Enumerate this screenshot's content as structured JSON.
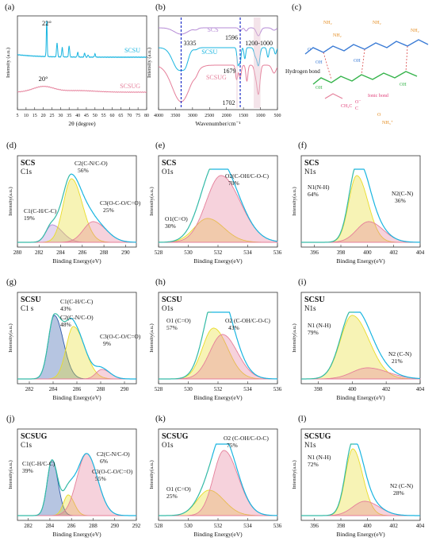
{
  "panel_labels": [
    "(a)",
    "(b)",
    "(c)",
    "(d)",
    "(e)",
    "(f)",
    "(g)",
    "(h)",
    "(i)",
    "(j)",
    "(k)",
    "(l)"
  ],
  "colors": {
    "cyan": "#19b5e0",
    "pink": "#e57f9a",
    "purple": "#b58bd6",
    "yellow": "#e9dc2a",
    "green": "#55c26a",
    "blue_fill": "#2e5aa8",
    "dash": "#1e2fc7"
  },
  "xrd": {
    "xlabel": "2θ (degree)",
    "ylabel": "Intensity (a.u.)",
    "ticks": [
      "5",
      "10",
      "15",
      "20",
      "25",
      "30",
      "35",
      "40",
      "45",
      "50",
      "55",
      "60",
      "65",
      "70",
      "75",
      "80"
    ],
    "series": [
      {
        "name": "SCSU",
        "peak_label": "22°"
      },
      {
        "name": "SCSUG",
        "peak_label": "20°"
      }
    ]
  },
  "ftir": {
    "xlabel": "Wavenumber/cm⁻¹",
    "ylabel": "Intensity (a.u.)",
    "ticks": [
      "4000",
      "3500",
      "3000",
      "2500",
      "2000",
      "1500",
      "1000",
      "500"
    ],
    "series": [
      {
        "name": "SCS"
      },
      {
        "name": "SCSU"
      },
      {
        "name": "SCSUG"
      }
    ],
    "annotations": [
      "3335",
      "1596",
      "1200-1000",
      "1679",
      "1702"
    ]
  },
  "structure": {
    "hbond_label": "Hydrogen bond",
    "ionic_label": "Ionic bond",
    "groups": [
      "NH₂",
      "NH₂",
      "NH₂",
      "NH₂",
      "OH",
      "OH",
      "OH",
      "OH",
      "O",
      "CH₂C",
      "O⁻",
      "C",
      "O",
      "NH₃⁺"
    ]
  },
  "xps_xlabel": "Binding Energy(eV)",
  "xps_ylabel": "Intensity(a.u.)",
  "chart_data": [
    {
      "type": "line",
      "panel": "(a)",
      "title": "",
      "xlabel": "2θ (degree)",
      "ylabel": "Intensity (a.u.)",
      "xlim": [
        5,
        80
      ],
      "series": [
        {
          "name": "SCSU",
          "peak_x": 22
        },
        {
          "name": "SCSUG",
          "peak_x": 20
        }
      ]
    },
    {
      "type": "line",
      "panel": "(b)",
      "title": "",
      "xlabel": "Wavenumber/cm⁻¹",
      "ylabel": "Intensity (a.u.)",
      "xlim": [
        4000,
        500
      ],
      "series": [
        {
          "name": "SCS"
        },
        {
          "name": "SCSU"
        },
        {
          "name": "SCSUG"
        }
      ],
      "markers": [
        3335,
        1596
      ]
    },
    {
      "type": "area",
      "panel": "(d)",
      "sample": "SCS",
      "core": "C1s",
      "xlim": [
        280,
        291
      ],
      "xticks": [
        280,
        282,
        284,
        286,
        288,
        290
      ],
      "components": [
        {
          "label": "C1(C-H/C-C)",
          "percent": "19%",
          "center": 283.2,
          "color": "#b58bd6"
        },
        {
          "label": "C2(C-N/C-O)",
          "percent": "56%",
          "center": 285.0,
          "color": "#e9dc2a"
        },
        {
          "label": "C3(O-C-O/C=O)",
          "percent": "25%",
          "center": 287.0,
          "color": "#e57f9a"
        }
      ]
    },
    {
      "type": "area",
      "panel": "(e)",
      "sample": "SCS",
      "core": "O1s",
      "xlim": [
        528,
        536
      ],
      "xticks": [
        528,
        530,
        532,
        534,
        536
      ],
      "components": [
        {
          "label": "O1(C=O)",
          "percent": "30%",
          "center": 531.3,
          "color": "#e9dc2a"
        },
        {
          "label": "O2(C-OH/C-O-C)",
          "percent": "70%",
          "center": 532.2,
          "color": "#e57f9a"
        }
      ]
    },
    {
      "type": "area",
      "panel": "(f)",
      "sample": "SCS",
      "core": "N1s",
      "xlim": [
        395,
        404
      ],
      "xticks": [
        396,
        398,
        400,
        402,
        404
      ],
      "components": [
        {
          "label": "N1(N-H)",
          "percent": "64%",
          "center": 399.2,
          "color": "#e9dc2a"
        },
        {
          "label": "N2(C-N)",
          "percent": "36%",
          "center": 400.1,
          "color": "#e57f9a"
        }
      ]
    },
    {
      "type": "area",
      "panel": "(g)",
      "sample": "SCSU",
      "core": "C1 s",
      "xlim": [
        281,
        291
      ],
      "xticks": [
        282,
        284,
        286,
        288,
        290
      ],
      "components": [
        {
          "label": "C1(C-H/C-C)",
          "percent": "43%",
          "center": 284.1,
          "color": "#2e5aa8"
        },
        {
          "label": "C2(C-N/C-O)",
          "percent": "48%",
          "center": 285.7,
          "color": "#e9dc2a"
        },
        {
          "label": "C3(O-C-O/C=O)",
          "percent": "9%",
          "center": 288.1,
          "color": "#e57f9a"
        }
      ]
    },
    {
      "type": "area",
      "panel": "(h)",
      "sample": "SCSU",
      "core": "O1s",
      "xlim": [
        528,
        536
      ],
      "xticks": [
        528,
        530,
        532,
        534,
        536
      ],
      "components": [
        {
          "label": "O1 (C=O)",
          "percent": "57%",
          "center": 531.7,
          "color": "#e9dc2a"
        },
        {
          "label": "O2 (C-OH/C-O-C)",
          "percent": "43%",
          "center": 532.3,
          "color": "#e57f9a"
        }
      ]
    },
    {
      "type": "area",
      "panel": "(i)",
      "sample": "SCSU",
      "core": "N1s",
      "xlim": [
        397,
        404
      ],
      "xticks": [
        398,
        400,
        402,
        404
      ],
      "components": [
        {
          "label": "N1 (N-H)",
          "percent": "79%",
          "center": 400.0,
          "color": "#e9dc2a"
        },
        {
          "label": "N2 (C-N)",
          "percent": "21%",
          "center": 400.9,
          "color": "#e57f9a"
        }
      ]
    },
    {
      "type": "area",
      "panel": "(j)",
      "sample": "SCSUG",
      "core": "C1s",
      "xlim": [
        281,
        292
      ],
      "xticks": [
        282,
        284,
        286,
        288,
        290,
        292
      ],
      "components": [
        {
          "label": "C1(C-H/C-C)",
          "percent": "39%",
          "center": 284.2,
          "color": "#2e5aa8"
        },
        {
          "label": "C2(C-N/C-O)",
          "percent": "6%",
          "center": 285.7,
          "color": "#e9dc2a"
        },
        {
          "label": "C3(O-C-O/C=O)",
          "percent": "55%",
          "center": 287.4,
          "color": "#e57f9a"
        }
      ]
    },
    {
      "type": "area",
      "panel": "(k)",
      "sample": "SCSUG",
      "core": "O1s",
      "xlim": [
        528,
        536
      ],
      "xticks": [
        528,
        530,
        532,
        534,
        536
      ],
      "components": [
        {
          "label": "O1 (C=O)",
          "percent": "25%",
          "center": 531.4,
          "color": "#e9dc2a"
        },
        {
          "label": "O2 (C-OH/C-O-C)",
          "percent": "75%",
          "center": 532.4,
          "color": "#e57f9a"
        }
      ]
    },
    {
      "type": "area",
      "panel": "(l)",
      "sample": "SCSUG",
      "core": "N1s",
      "xlim": [
        395,
        404
      ],
      "xticks": [
        396,
        398,
        400,
        402,
        404
      ],
      "components": [
        {
          "label": "N1 (N-H)",
          "percent": "72%",
          "center": 398.9,
          "color": "#e9dc2a"
        },
        {
          "label": "N2 (C-N)",
          "percent": "28%",
          "center": 399.8,
          "color": "#e57f9a"
        }
      ]
    }
  ]
}
